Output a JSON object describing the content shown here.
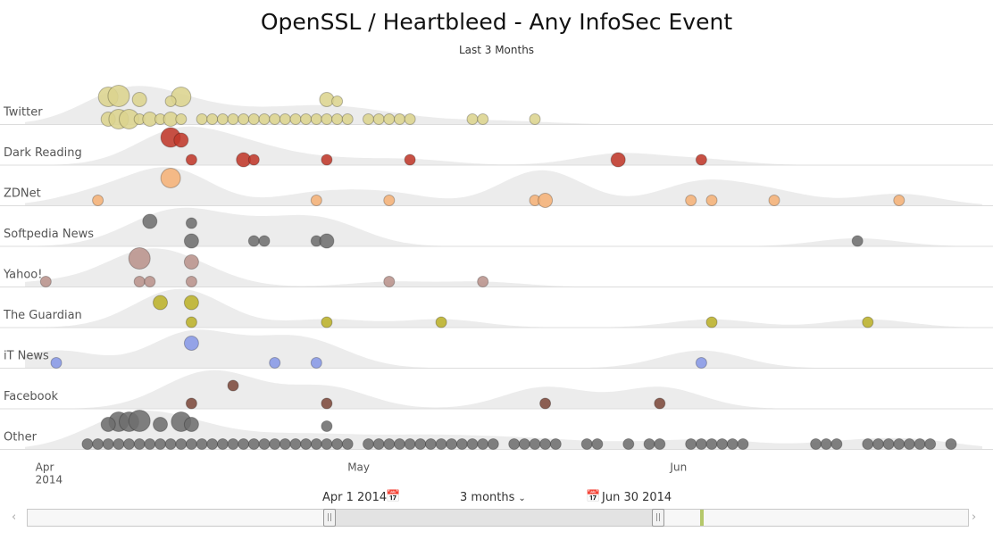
{
  "title": "OpenSSL / Heartbleed - Any InfoSec Event",
  "subtitle": "Last 3 Months",
  "controls": {
    "start_date": "Apr 1 2014",
    "range_label": "3 months",
    "end_date": "Jun 30 2014",
    "calendar_icon": "calendar-icon"
  },
  "colors": {
    "Twitter": "#dcd48e",
    "Dark Reading": "#c0392b",
    "ZDNet": "#f5b277",
    "Softpedia News": "#707070",
    "Yahoo!": "#b9938c",
    "The Guardian": "#bcb22a",
    "iT News": "#8899e6",
    "Facebook": "#7d4a3c",
    "Other": "#6e6e6e",
    "density": "#ececec",
    "navigator_today": "#b5c86a"
  },
  "chart_data": {
    "type": "scatter",
    "x_axis": {
      "type": "date",
      "range": [
        "2014-03-31",
        "2014-07-01"
      ],
      "ticks": [
        {
          "date": "2014-04-01",
          "label": "Apr",
          "sublabel": "2014"
        },
        {
          "date": "2014-05-01",
          "label": "May",
          "sublabel": ""
        },
        {
          "date": "2014-06-01",
          "label": "Jun",
          "sublabel": ""
        }
      ]
    },
    "grid": true,
    "rows": [
      {
        "name": "Twitter",
        "events": [
          {
            "d": "2014-04-08",
            "s": 2,
            "l": 0
          },
          {
            "d": "2014-04-09",
            "s": 3,
            "l": 0
          },
          {
            "d": "2014-04-10",
            "s": 3,
            "l": 0
          },
          {
            "d": "2014-04-11",
            "s": 1,
            "l": 0
          },
          {
            "d": "2014-04-12",
            "s": 2,
            "l": 0
          },
          {
            "d": "2014-04-13",
            "s": 1,
            "l": 0
          },
          {
            "d": "2014-04-14",
            "s": 2,
            "l": 0
          },
          {
            "d": "2014-04-15",
            "s": 1,
            "l": 0
          },
          {
            "d": "2014-04-17",
            "s": 1,
            "l": 0
          },
          {
            "d": "2014-04-18",
            "s": 1,
            "l": 0
          },
          {
            "d": "2014-04-19",
            "s": 1,
            "l": 0
          },
          {
            "d": "2014-04-20",
            "s": 1,
            "l": 0
          },
          {
            "d": "2014-04-21",
            "s": 1,
            "l": 0
          },
          {
            "d": "2014-04-22",
            "s": 1,
            "l": 0
          },
          {
            "d": "2014-04-23",
            "s": 1,
            "l": 0
          },
          {
            "d": "2014-04-24",
            "s": 1,
            "l": 0
          },
          {
            "d": "2014-04-25",
            "s": 1,
            "l": 0
          },
          {
            "d": "2014-04-26",
            "s": 1,
            "l": 0
          },
          {
            "d": "2014-04-27",
            "s": 1,
            "l": 0
          },
          {
            "d": "2014-04-28",
            "s": 1,
            "l": 0
          },
          {
            "d": "2014-04-29",
            "s": 1,
            "l": 0
          },
          {
            "d": "2014-04-30",
            "s": 1,
            "l": 0
          },
          {
            "d": "2014-05-01",
            "s": 1,
            "l": 0
          },
          {
            "d": "2014-05-03",
            "s": 1,
            "l": 0
          },
          {
            "d": "2014-05-04",
            "s": 1,
            "l": 0
          },
          {
            "d": "2014-05-05",
            "s": 1,
            "l": 0
          },
          {
            "d": "2014-05-06",
            "s": 1,
            "l": 0
          },
          {
            "d": "2014-05-07",
            "s": 1,
            "l": 0
          },
          {
            "d": "2014-05-13",
            "s": 1,
            "l": 0
          },
          {
            "d": "2014-05-14",
            "s": 1,
            "l": 0
          },
          {
            "d": "2014-05-19",
            "s": 1,
            "l": 0
          },
          {
            "d": "2014-04-08",
            "s": 3,
            "l": 1
          },
          {
            "d": "2014-04-09",
            "s": 4,
            "l": 1
          },
          {
            "d": "2014-04-15",
            "s": 3,
            "l": 1
          },
          {
            "d": "2014-04-11",
            "s": 2,
            "l": 1
          },
          {
            "d": "2014-04-14",
            "s": 1,
            "l": 1
          },
          {
            "d": "2014-04-29",
            "s": 2,
            "l": 1
          },
          {
            "d": "2014-04-30",
            "s": 1,
            "l": 1
          }
        ]
      },
      {
        "name": "Dark Reading",
        "events": [
          {
            "d": "2014-04-16",
            "s": 1,
            "l": 0
          },
          {
            "d": "2014-04-21",
            "s": 2,
            "l": 0
          },
          {
            "d": "2014-04-22",
            "s": 1,
            "l": 0
          },
          {
            "d": "2014-04-29",
            "s": 1,
            "l": 0
          },
          {
            "d": "2014-05-07",
            "s": 1,
            "l": 0
          },
          {
            "d": "2014-05-27",
            "s": 2,
            "l": 0
          },
          {
            "d": "2014-06-04",
            "s": 1,
            "l": 0
          },
          {
            "d": "2014-04-14",
            "s": 3,
            "l": 1
          },
          {
            "d": "2014-04-15",
            "s": 2,
            "l": 1
          }
        ]
      },
      {
        "name": "ZDNet",
        "events": [
          {
            "d": "2014-04-07",
            "s": 1,
            "l": 0
          },
          {
            "d": "2014-04-28",
            "s": 1,
            "l": 0
          },
          {
            "d": "2014-05-05",
            "s": 1,
            "l": 0
          },
          {
            "d": "2014-05-19",
            "s": 1,
            "l": 0
          },
          {
            "d": "2014-05-20",
            "s": 2,
            "l": 0
          },
          {
            "d": "2014-06-03",
            "s": 1,
            "l": 0
          },
          {
            "d": "2014-06-05",
            "s": 1,
            "l": 0
          },
          {
            "d": "2014-06-11",
            "s": 1,
            "l": 0
          },
          {
            "d": "2014-06-23",
            "s": 1,
            "l": 0
          },
          {
            "d": "2014-04-14",
            "s": 3,
            "l": 1
          }
        ]
      },
      {
        "name": "Softpedia News",
        "events": [
          {
            "d": "2014-04-16",
            "s": 2,
            "l": 0
          },
          {
            "d": "2014-04-22",
            "s": 1,
            "l": 0
          },
          {
            "d": "2014-04-23",
            "s": 1,
            "l": 0
          },
          {
            "d": "2014-04-28",
            "s": 1,
            "l": 0
          },
          {
            "d": "2014-04-29",
            "s": 2,
            "l": 0
          },
          {
            "d": "2014-06-19",
            "s": 1,
            "l": 0
          },
          {
            "d": "2014-04-12",
            "s": 2,
            "l": 1
          },
          {
            "d": "2014-04-16",
            "s": 1,
            "l": 1
          }
        ]
      },
      {
        "name": "Yahoo!",
        "events": [
          {
            "d": "2014-04-02",
            "s": 1,
            "l": 0
          },
          {
            "d": "2014-04-11",
            "s": 1,
            "l": 0
          },
          {
            "d": "2014-04-12",
            "s": 1,
            "l": 0
          },
          {
            "d": "2014-04-16",
            "s": 1,
            "l": 0
          },
          {
            "d": "2014-05-05",
            "s": 1,
            "l": 0
          },
          {
            "d": "2014-05-14",
            "s": 1,
            "l": 0
          },
          {
            "d": "2014-04-11",
            "s": 4,
            "l": 1
          },
          {
            "d": "2014-04-16",
            "s": 2,
            "l": 1
          }
        ]
      },
      {
        "name": "The Guardian",
        "events": [
          {
            "d": "2014-04-16",
            "s": 1,
            "l": 0
          },
          {
            "d": "2014-04-29",
            "s": 1,
            "l": 0
          },
          {
            "d": "2014-05-10",
            "s": 1,
            "l": 0
          },
          {
            "d": "2014-06-05",
            "s": 1,
            "l": 0
          },
          {
            "d": "2014-06-20",
            "s": 1,
            "l": 0
          },
          {
            "d": "2014-04-13",
            "s": 2,
            "l": 1
          },
          {
            "d": "2014-04-16",
            "s": 2,
            "l": 1
          }
        ]
      },
      {
        "name": "iT News",
        "events": [
          {
            "d": "2014-04-03",
            "s": 1,
            "l": 0
          },
          {
            "d": "2014-04-24",
            "s": 1,
            "l": 0
          },
          {
            "d": "2014-04-28",
            "s": 1,
            "l": 0
          },
          {
            "d": "2014-06-04",
            "s": 1,
            "l": 0
          },
          {
            "d": "2014-04-16",
            "s": 2,
            "l": 1
          }
        ]
      },
      {
        "name": "Facebook",
        "events": [
          {
            "d": "2014-04-16",
            "s": 1,
            "l": 0
          },
          {
            "d": "2014-04-29",
            "s": 1,
            "l": 0
          },
          {
            "d": "2014-05-20",
            "s": 1,
            "l": 0
          },
          {
            "d": "2014-05-31",
            "s": 1,
            "l": 0
          },
          {
            "d": "2014-04-20",
            "s": 1,
            "l": 1
          }
        ]
      },
      {
        "name": "Other",
        "events": [
          {
            "d": "2014-04-06",
            "s": 1,
            "l": 0
          },
          {
            "d": "2014-04-07",
            "s": 1,
            "l": 0
          },
          {
            "d": "2014-04-08",
            "s": 1,
            "l": 0
          },
          {
            "d": "2014-04-09",
            "s": 1,
            "l": 0
          },
          {
            "d": "2014-04-10",
            "s": 1,
            "l": 0
          },
          {
            "d": "2014-04-11",
            "s": 1,
            "l": 0
          },
          {
            "d": "2014-04-12",
            "s": 1,
            "l": 0
          },
          {
            "d": "2014-04-13",
            "s": 1,
            "l": 0
          },
          {
            "d": "2014-04-14",
            "s": 1,
            "l": 0
          },
          {
            "d": "2014-04-15",
            "s": 1,
            "l": 0
          },
          {
            "d": "2014-04-16",
            "s": 1,
            "l": 0
          },
          {
            "d": "2014-04-17",
            "s": 1,
            "l": 0
          },
          {
            "d": "2014-04-18",
            "s": 1,
            "l": 0
          },
          {
            "d": "2014-04-19",
            "s": 1,
            "l": 0
          },
          {
            "d": "2014-04-20",
            "s": 1,
            "l": 0
          },
          {
            "d": "2014-04-21",
            "s": 1,
            "l": 0
          },
          {
            "d": "2014-04-22",
            "s": 1,
            "l": 0
          },
          {
            "d": "2014-04-23",
            "s": 1,
            "l": 0
          },
          {
            "d": "2014-04-24",
            "s": 1,
            "l": 0
          },
          {
            "d": "2014-04-25",
            "s": 1,
            "l": 0
          },
          {
            "d": "2014-04-26",
            "s": 1,
            "l": 0
          },
          {
            "d": "2014-04-27",
            "s": 1,
            "l": 0
          },
          {
            "d": "2014-04-28",
            "s": 1,
            "l": 0
          },
          {
            "d": "2014-04-29",
            "s": 1,
            "l": 0
          },
          {
            "d": "2014-04-30",
            "s": 1,
            "l": 0
          },
          {
            "d": "2014-05-01",
            "s": 1,
            "l": 0
          },
          {
            "d": "2014-05-03",
            "s": 1,
            "l": 0
          },
          {
            "d": "2014-05-04",
            "s": 1,
            "l": 0
          },
          {
            "d": "2014-05-05",
            "s": 1,
            "l": 0
          },
          {
            "d": "2014-05-06",
            "s": 1,
            "l": 0
          },
          {
            "d": "2014-05-07",
            "s": 1,
            "l": 0
          },
          {
            "d": "2014-05-08",
            "s": 1,
            "l": 0
          },
          {
            "d": "2014-05-09",
            "s": 1,
            "l": 0
          },
          {
            "d": "2014-05-10",
            "s": 1,
            "l": 0
          },
          {
            "d": "2014-05-11",
            "s": 1,
            "l": 0
          },
          {
            "d": "2014-05-12",
            "s": 1,
            "l": 0
          },
          {
            "d": "2014-05-13",
            "s": 1,
            "l": 0
          },
          {
            "d": "2014-05-14",
            "s": 1,
            "l": 0
          },
          {
            "d": "2014-05-15",
            "s": 1,
            "l": 0
          },
          {
            "d": "2014-05-17",
            "s": 1,
            "l": 0
          },
          {
            "d": "2014-05-18",
            "s": 1,
            "l": 0
          },
          {
            "d": "2014-05-19",
            "s": 1,
            "l": 0
          },
          {
            "d": "2014-05-20",
            "s": 1,
            "l": 0
          },
          {
            "d": "2014-05-21",
            "s": 1,
            "l": 0
          },
          {
            "d": "2014-05-24",
            "s": 1,
            "l": 0
          },
          {
            "d": "2014-05-25",
            "s": 1,
            "l": 0
          },
          {
            "d": "2014-05-28",
            "s": 1,
            "l": 0
          },
          {
            "d": "2014-05-30",
            "s": 1,
            "l": 0
          },
          {
            "d": "2014-05-31",
            "s": 1,
            "l": 0
          },
          {
            "d": "2014-06-03",
            "s": 1,
            "l": 0
          },
          {
            "d": "2014-06-04",
            "s": 1,
            "l": 0
          },
          {
            "d": "2014-06-05",
            "s": 1,
            "l": 0
          },
          {
            "d": "2014-06-06",
            "s": 1,
            "l": 0
          },
          {
            "d": "2014-06-07",
            "s": 1,
            "l": 0
          },
          {
            "d": "2014-06-08",
            "s": 1,
            "l": 0
          },
          {
            "d": "2014-06-15",
            "s": 1,
            "l": 0
          },
          {
            "d": "2014-06-16",
            "s": 1,
            "l": 0
          },
          {
            "d": "2014-06-17",
            "s": 1,
            "l": 0
          },
          {
            "d": "2014-06-20",
            "s": 1,
            "l": 0
          },
          {
            "d": "2014-06-21",
            "s": 1,
            "l": 0
          },
          {
            "d": "2014-06-22",
            "s": 1,
            "l": 0
          },
          {
            "d": "2014-06-23",
            "s": 1,
            "l": 0
          },
          {
            "d": "2014-06-24",
            "s": 1,
            "l": 0
          },
          {
            "d": "2014-06-25",
            "s": 1,
            "l": 0
          },
          {
            "d": "2014-06-26",
            "s": 1,
            "l": 0
          },
          {
            "d": "2014-06-28",
            "s": 1,
            "l": 0
          },
          {
            "d": "2014-04-09",
            "s": 3,
            "l": 1
          },
          {
            "d": "2014-04-10",
            "s": 3,
            "l": 1
          },
          {
            "d": "2014-04-11",
            "s": 4,
            "l": 1
          },
          {
            "d": "2014-04-13",
            "s": 2,
            "l": 1
          },
          {
            "d": "2014-04-15",
            "s": 3,
            "l": 1
          },
          {
            "d": "2014-04-16",
            "s": 2,
            "l": 1
          },
          {
            "d": "2014-04-08",
            "s": 2,
            "l": 1
          },
          {
            "d": "2014-04-29",
            "s": 1,
            "l": 1
          }
        ]
      }
    ]
  }
}
